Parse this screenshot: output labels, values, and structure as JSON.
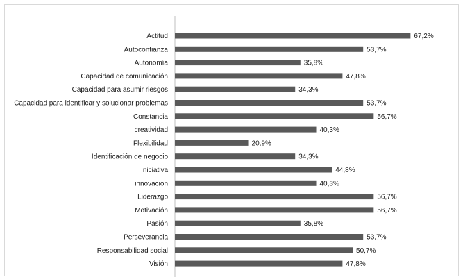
{
  "chart_data": {
    "type": "bar",
    "orientation": "horizontal",
    "categories": [
      "Actitud",
      "Autoconfianza",
      "Autonomía",
      "Capacidad de comunicación",
      "Capacidad para asumir riesgos",
      "Capacidad para identificar y solucionar problemas",
      "Constancia",
      "creatividad",
      "Flexibilidad",
      "Identificación de negocio",
      "Iniciativa",
      "innovación",
      "Liderazgo",
      "Motivación",
      "Pasión",
      "Perseverancia",
      "Responsabilidad social",
      "Visión"
    ],
    "values": [
      67.2,
      53.7,
      35.8,
      47.8,
      34.3,
      53.7,
      56.7,
      40.3,
      20.9,
      34.3,
      44.8,
      40.3,
      56.7,
      56.7,
      35.8,
      53.7,
      50.7,
      47.8
    ],
    "value_labels": [
      "67,2%",
      "53,7%",
      "35,8%",
      "47,8%",
      "34,3%",
      "53,7%",
      "56,7%",
      "40,3%",
      "20,9%",
      "34,3%",
      "44,8%",
      "40,3%",
      "56,7%",
      "56,7%",
      "35,8%",
      "53,7%",
      "50,7%",
      "47,8%"
    ],
    "xlim": [
      0,
      100
    ],
    "grid": false,
    "legend": "none",
    "bar_color": "#595959",
    "axis_color": "#bfbfbf"
  }
}
